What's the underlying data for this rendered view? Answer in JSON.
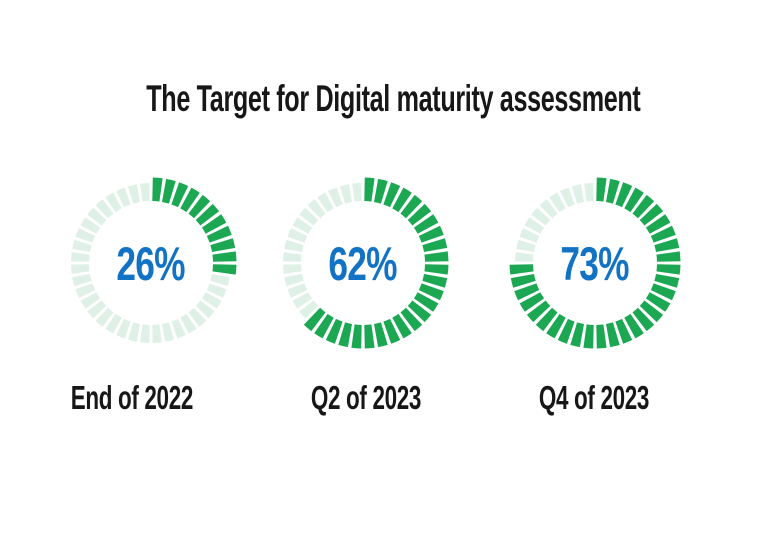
{
  "title": "The Target for Digital maturity assessment",
  "chart_data": {
    "type": "pie",
    "variant": "segmented-donut-gauges",
    "title": "The Target for Digital maturity assessment",
    "segments_total": 40,
    "start_angle_deg": 0,
    "direction": "clockwise",
    "gauges": [
      {
        "label": "End of 2022",
        "value_pct": 26,
        "value_text": "26%"
      },
      {
        "label": "Q2 of 2023",
        "value_pct": 62,
        "value_text": "62%"
      },
      {
        "label": "Q4 of 2023",
        "value_pct": 73,
        "value_text": "73%"
      }
    ],
    "colors": {
      "active_segment": "#1CA853",
      "inactive_segment": "#DFF1E6",
      "value_text": "#1273C4",
      "label_text": "#171717",
      "background": "#FFFFFF"
    },
    "legend": "none",
    "grid": "off"
  }
}
